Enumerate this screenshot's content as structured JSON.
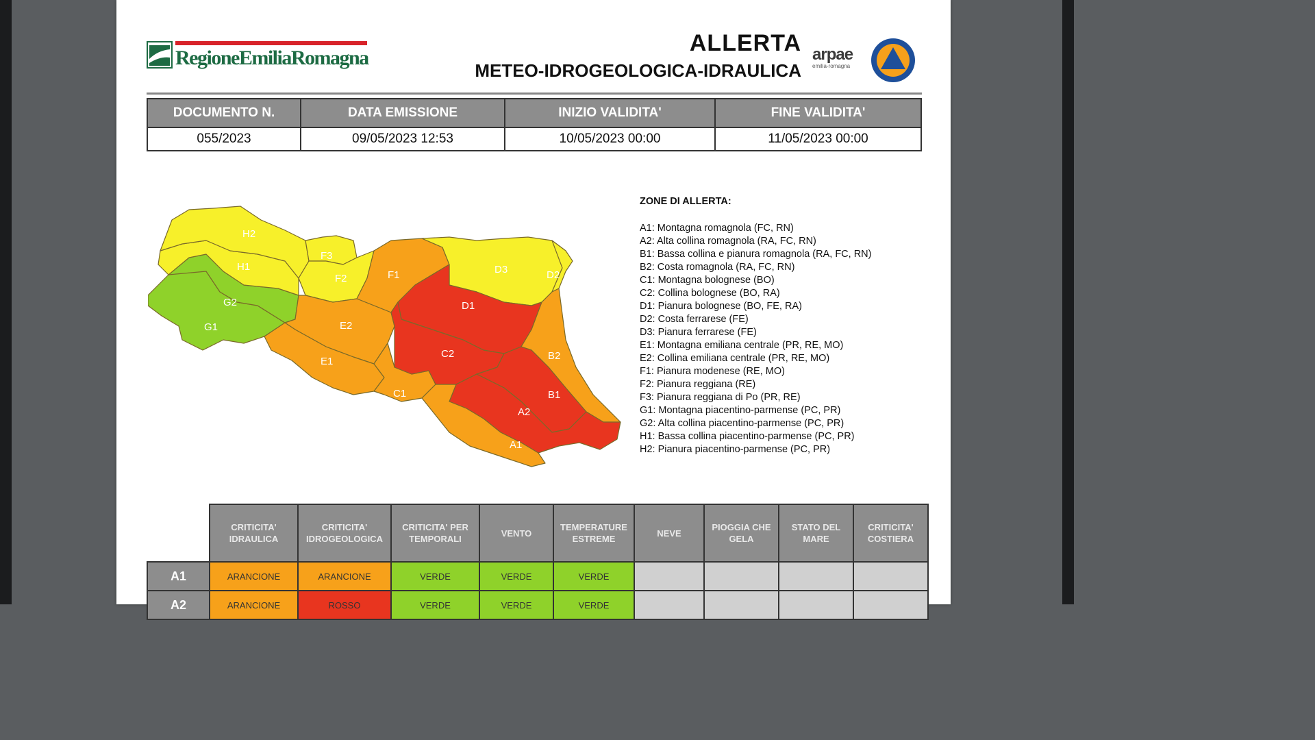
{
  "header": {
    "region_logo_text": "RegioneEmiliaRomagna",
    "title": "ALLERTA",
    "subtitle": "METEO-IDROGEOLOGICA-IDRAULICA",
    "arpae_logo_text": "arpae",
    "arpae_logo_sub": "emilia-romagna"
  },
  "document_info": {
    "headers": [
      "DOCUMENTO N.",
      "DATA EMISSIONE",
      "INIZIO VALIDITA'",
      "FINE VALIDITA'"
    ],
    "values": [
      "055/2023",
      "09/05/2023 12:53",
      "10/05/2023 00:00",
      "11/05/2023 00:00"
    ]
  },
  "colors": {
    "verde": "#8fd22a",
    "giallo": "#f7f02a",
    "arancione": "#f7a11a",
    "rosso": "#e8351f",
    "header_grey": "#8d8d8d"
  },
  "map": {
    "zones": [
      {
        "code": "H2",
        "level": "giallo"
      },
      {
        "code": "H1",
        "level": "giallo"
      },
      {
        "code": "F3",
        "level": "giallo"
      },
      {
        "code": "F2",
        "level": "giallo"
      },
      {
        "code": "F1",
        "level": "arancione"
      },
      {
        "code": "D3",
        "level": "giallo"
      },
      {
        "code": "D2",
        "level": "giallo"
      },
      {
        "code": "D1",
        "level": "rosso"
      },
      {
        "code": "G2",
        "level": "verde"
      },
      {
        "code": "G1",
        "level": "verde"
      },
      {
        "code": "E2",
        "level": "arancione"
      },
      {
        "code": "E1",
        "level": "arancione"
      },
      {
        "code": "C2",
        "level": "rosso"
      },
      {
        "code": "C1",
        "level": "arancione"
      },
      {
        "code": "B2",
        "level": "arancione"
      },
      {
        "code": "B1",
        "level": "rosso"
      },
      {
        "code": "A2",
        "level": "rosso"
      },
      {
        "code": "A1",
        "level": "arancione"
      }
    ]
  },
  "legend": {
    "title": "ZONE DI ALLERTA:",
    "items": [
      "A1: Montagna romagnola (FC, RN)",
      "A2: Alta collina romagnola (RA, FC, RN)",
      "B1: Bassa collina e pianura romagnola (RA, FC, RN)",
      "B2: Costa romagnola (RA, FC, RN)",
      "C1: Montagna bolognese (BO)",
      "C2: Collina bolognese (BO, RA)",
      "D1: Pianura bolognese (BO, FE, RA)",
      "D2: Costa ferrarese (FE)",
      "D3: Pianura ferrarese (FE)",
      "E1: Montagna emiliana centrale (PR, RE, MO)",
      "E2: Collina emiliana centrale (PR, RE, MO)",
      "F1: Pianura modenese (RE, MO)",
      "F2: Pianura reggiana (RE)",
      "F3: Pianura reggiana di Po (PR, RE)",
      "G1: Montagna piacentino-parmense (PC, PR)",
      "G2: Alta collina piacentino-parmense (PC, PR)",
      "H1: Bassa collina piacentino-parmense (PC, PR)",
      "H2: Pianura piacentino-parmense (PC, PR)"
    ]
  },
  "criticita": {
    "columns": [
      "CRITICITA' IDRAULICA",
      "CRITICITA' IDROGEOLOGICA",
      "CRITICITA' PER TEMPORALI",
      "VENTO",
      "TEMPERATURE ESTREME",
      "NEVE",
      "PIOGGIA CHE GELA",
      "STATO DEL MARE",
      "CRITICITA' COSTIERA"
    ],
    "rows": [
      {
        "zone": "A1",
        "cells": [
          "ARANCIONE",
          "ARANCIONE",
          "VERDE",
          "VERDE",
          "VERDE",
          "",
          "",
          "",
          ""
        ],
        "classes": [
          "arancione",
          "arancione",
          "verde",
          "verde",
          "verde",
          "grigio",
          "grigio",
          "grigio",
          "grigio"
        ]
      },
      {
        "zone": "A2",
        "cells": [
          "ARANCIONE",
          "ROSSO",
          "VERDE",
          "VERDE",
          "VERDE",
          "",
          "",
          "",
          ""
        ],
        "classes": [
          "arancione",
          "rosso",
          "verde",
          "verde",
          "verde",
          "grigio",
          "grigio",
          "grigio",
          "grigio"
        ]
      }
    ]
  }
}
